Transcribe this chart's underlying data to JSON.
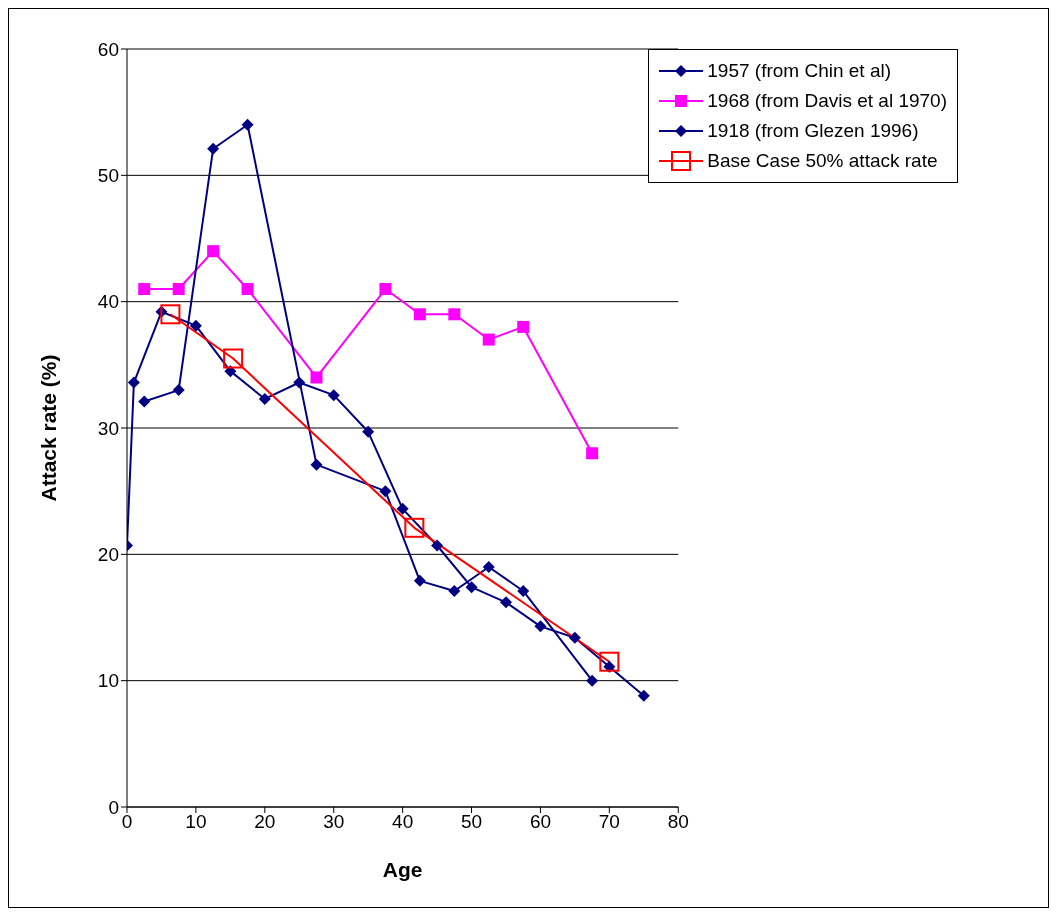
{
  "chart_data": {
    "type": "line",
    "xlabel": "Age",
    "ylabel": "Attack rate (%)",
    "xlim": [
      0,
      80
    ],
    "xticks": [
      0,
      10,
      20,
      30,
      40,
      50,
      60,
      70,
      80
    ],
    "ylim": [
      0,
      60
    ],
    "yticks": [
      0,
      10,
      20,
      30,
      40,
      50,
      60
    ],
    "grid": "y",
    "legend": "top right",
    "series": [
      {
        "name": "1957 (from Chin et al)",
        "color": "#000080",
        "marker": "diamond",
        "x": [
          0,
          1,
          5,
          10,
          15,
          20,
          25,
          30,
          35,
          40,
          45,
          50,
          55,
          60,
          65,
          70,
          75
        ],
        "values": [
          20.7,
          33.6,
          39.2,
          38.1,
          34.5,
          32.3,
          33.6,
          32.6,
          29.7,
          23.6,
          20.7,
          17.4,
          16.2,
          14.3,
          13.4,
          11.1,
          8.8
        ]
      },
      {
        "name": "1968 (from Davis et al 1970)",
        "color": "#ff00ff",
        "marker": "square",
        "x": [
          2.5,
          7.5,
          12.5,
          17.5,
          27.5,
          37.5,
          42.5,
          47.5,
          52.5,
          57.5,
          67.5
        ],
        "values": [
          41,
          41,
          44,
          41,
          34,
          41,
          39,
          39,
          37,
          38,
          28
        ]
      },
      {
        "name": "1918 (from Glezen 1996)",
        "color": "#000080",
        "marker": "diamond",
        "x": [
          2.5,
          7.5,
          12.5,
          17.5,
          27.5,
          37.5,
          42.5,
          47.5,
          52.5,
          57.5,
          67.5
        ],
        "values": [
          32.1,
          33,
          52.1,
          54,
          27.1,
          25,
          17.9,
          17.1,
          19,
          17.1,
          10
        ]
      },
      {
        "name": "Base Case 50% attack rate",
        "color": "#ff0000",
        "marker": "square",
        "x": [
          6.3,
          15.4,
          41.7,
          70
        ],
        "values": [
          39,
          35.5,
          22.1,
          11.5
        ]
      }
    ]
  }
}
